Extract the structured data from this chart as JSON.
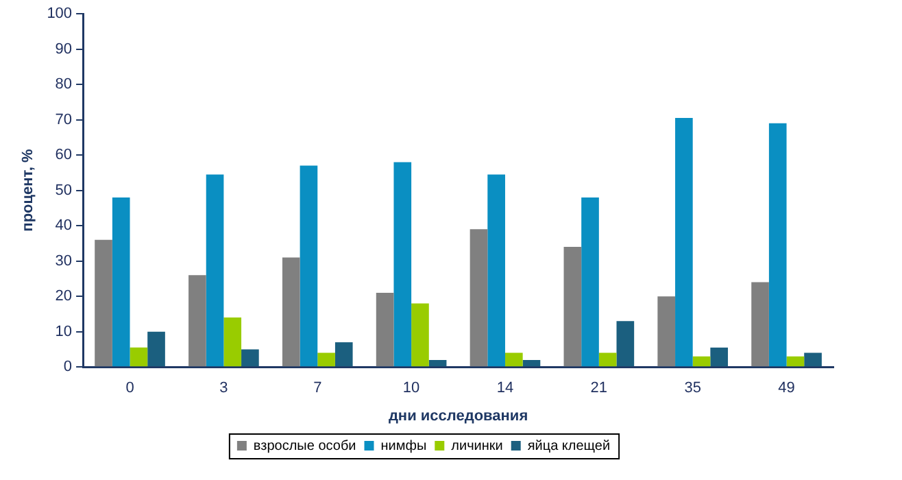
{
  "chart_data": {
    "type": "bar",
    "xlabel": "дни исследования",
    "ylabel": "процент, %",
    "categories": [
      "0",
      "3",
      "7",
      "10",
      "14",
      "21",
      "35",
      "49"
    ],
    "series": [
      {
        "name": "взрослые особи",
        "color": "#808080",
        "values": [
          36,
          26,
          31,
          21,
          39,
          34,
          20,
          24
        ]
      },
      {
        "name": "нимфы",
        "color": "#0a8fc2",
        "values": [
          48,
          54.5,
          57,
          58,
          54.5,
          48,
          70.5,
          69
        ]
      },
      {
        "name": "личинки",
        "color": "#99cc00",
        "values": [
          5.5,
          14,
          4,
          18,
          4,
          4,
          3,
          3
        ]
      },
      {
        "name": "яйца клещей",
        "color": "#1b5f7f",
        "values": [
          10,
          5,
          7,
          2,
          2,
          13,
          5.5,
          4
        ]
      }
    ],
    "ylim": [
      0,
      100
    ],
    "yticks": [
      0,
      10,
      20,
      30,
      40,
      50,
      60,
      70,
      80,
      90,
      100
    ],
    "grid": false,
    "legend": "bottom"
  }
}
